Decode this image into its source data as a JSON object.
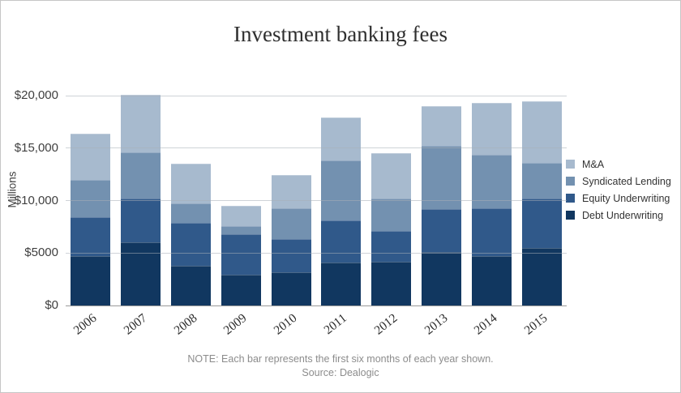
{
  "note": {
    "line1": "NOTE: Each bar represents the first six months of each year shown.",
    "line2": "Source: Dealogic"
  },
  "chart_data": {
    "type": "bar",
    "stacked": true,
    "title": "Investment banking fees",
    "ylabel": "Millions",
    "xlabel": "",
    "grid": true,
    "ylim": [
      0,
      20000
    ],
    "categories": [
      "2006",
      "2007",
      "2008",
      "2009",
      "2010",
      "2011",
      "2012",
      "2013",
      "2014",
      "2015"
    ],
    "series": [
      {
        "name": "Debt Underwriting",
        "color": "#113760",
        "values": [
          4700,
          6000,
          3800,
          2900,
          3200,
          4100,
          4200,
          5100,
          4700,
          5500
        ]
      },
      {
        "name": "Equity Underwriting",
        "color": "#30598a",
        "values": [
          3700,
          4200,
          4100,
          3900,
          3100,
          4000,
          2900,
          4100,
          4600,
          4700
        ]
      },
      {
        "name": "Syndicated Lending",
        "color": "#7391b0",
        "values": [
          3600,
          4400,
          1800,
          800,
          3000,
          5700,
          3100,
          6000,
          5100,
          3400
        ]
      },
      {
        "name": "M&A",
        "color": "#a7bace",
        "values": [
          4400,
          5500,
          3800,
          1900,
          3100,
          4100,
          4300,
          3800,
          4900,
          5900
        ]
      }
    ],
    "totals": [
      16400,
      20100,
      13500,
      9500,
      12400,
      17900,
      14500,
      19000,
      19300,
      19500
    ],
    "y_ticks": [
      {
        "value": 0,
        "label": "$0"
      },
      {
        "value": 5000,
        "label": "$5000"
      },
      {
        "value": 10000,
        "label": "$10,000"
      },
      {
        "value": 15000,
        "label": "$15,000"
      },
      {
        "value": 20000,
        "label": "$20,000"
      }
    ],
    "legend": {
      "position": "right",
      "items": [
        "M&A",
        "Syndicated Lending",
        "Equity Underwriting",
        "Debt Underwriting"
      ]
    }
  }
}
